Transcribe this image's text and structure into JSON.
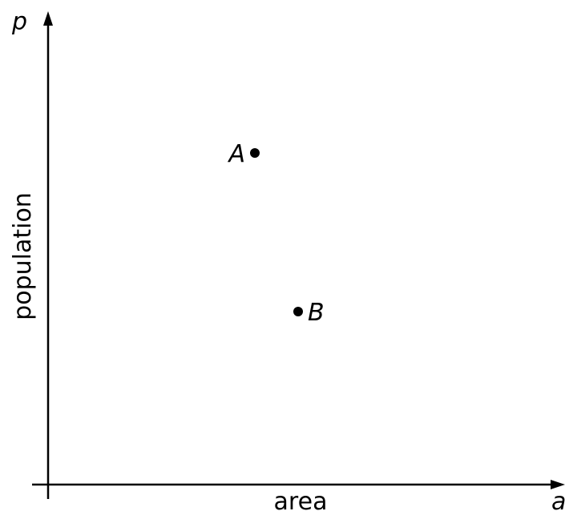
{
  "chart_data": {
    "type": "scatter",
    "xlabel": "area",
    "ylabel": "population",
    "x_variable": "a",
    "y_variable": "p",
    "points": [
      {
        "label": "A",
        "x": 4.3,
        "y": 6.9
      },
      {
        "label": "B",
        "x": 5.2,
        "y": 3.6
      }
    ],
    "grid": false
  }
}
